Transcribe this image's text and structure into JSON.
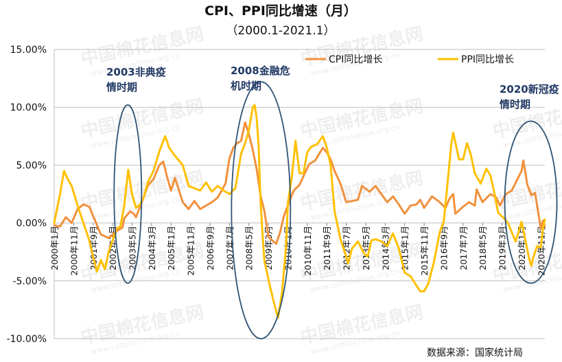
{
  "chart_data": {
    "type": "line",
    "title": "CPI、PPI同比增速（月）",
    "subtitle": "（2000.1-2021.1）",
    "ylim": [
      -10,
      15
    ],
    "y_ticks": [
      "15.00%",
      "10.00%",
      "5.00%",
      "0.00%",
      "-5.00%",
      "-10.00%"
    ],
    "y_tick_values": [
      15,
      10,
      5,
      0,
      -5,
      -10
    ],
    "x_range": [
      2000.0,
      2021.0
    ],
    "x_ticks": [
      "2000年1月",
      "2000年11月",
      "2001年9月",
      "2002年7月",
      "2003年5月",
      "2004年3月",
      "2005年1月",
      "2005年11月",
      "2006年9月",
      "2007年7月",
      "2008年5月",
      "2009年3月",
      "2010年1月",
      "2010年11月",
      "2011年9月",
      "2012年7月",
      "2013年5月",
      "2014年3月",
      "2015年1月",
      "2015年11月",
      "2016年9月",
      "2017年7月",
      "2018年5月",
      "2019年3月",
      "2020年1月",
      "2020年11月"
    ],
    "x_tick_values": [
      2000.0,
      2000.833,
      2001.667,
      2002.5,
      2003.333,
      2004.167,
      2005.0,
      2005.833,
      2006.667,
      2007.5,
      2008.333,
      2009.167,
      2010.0,
      2010.833,
      2011.667,
      2012.5,
      2013.333,
      2014.167,
      2015.0,
      2015.833,
      2016.667,
      2017.5,
      2018.333,
      2019.167,
      2020.0,
      2020.833
    ],
    "grid": "horizontal",
    "legend_position": "top-right",
    "series": [
      {
        "name": "CPI同比增长",
        "color": "#F0913D",
        "points": [
          [
            2000.0,
            -0.2
          ],
          [
            2000.25,
            -0.3
          ],
          [
            2000.5,
            0.5
          ],
          [
            2000.75,
            0.0
          ],
          [
            2001.0,
            1.2
          ],
          [
            2001.25,
            1.6
          ],
          [
            2001.5,
            1.4
          ],
          [
            2001.75,
            0.2
          ],
          [
            2002.0,
            -1.0
          ],
          [
            2002.33,
            -1.3
          ],
          [
            2002.67,
            -0.7
          ],
          [
            2002.92,
            -0.4
          ],
          [
            2003.0,
            0.4
          ],
          [
            2003.25,
            1.0
          ],
          [
            2003.4,
            0.8
          ],
          [
            2003.5,
            0.5
          ],
          [
            2003.75,
            1.8
          ],
          [
            2004.0,
            3.2
          ],
          [
            2004.25,
            3.8
          ],
          [
            2004.5,
            5.0
          ],
          [
            2004.67,
            5.3
          ],
          [
            2004.83,
            4.0
          ],
          [
            2005.0,
            2.8
          ],
          [
            2005.17,
            3.9
          ],
          [
            2005.5,
            1.8
          ],
          [
            2005.75,
            1.2
          ],
          [
            2006.0,
            1.9
          ],
          [
            2006.25,
            1.2
          ],
          [
            2006.5,
            1.5
          ],
          [
            2006.75,
            1.8
          ],
          [
            2007.0,
            2.2
          ],
          [
            2007.33,
            3.4
          ],
          [
            2007.5,
            5.6
          ],
          [
            2007.67,
            6.5
          ],
          [
            2007.83,
            6.9
          ],
          [
            2008.0,
            7.1
          ],
          [
            2008.17,
            8.7
          ],
          [
            2008.33,
            7.7
          ],
          [
            2008.5,
            6.3
          ],
          [
            2008.67,
            4.6
          ],
          [
            2008.83,
            2.4
          ],
          [
            2009.0,
            1.0
          ],
          [
            2009.17,
            -1.2
          ],
          [
            2009.33,
            -1.5
          ],
          [
            2009.5,
            -1.8
          ],
          [
            2009.67,
            -0.8
          ],
          [
            2009.83,
            0.6
          ],
          [
            2010.0,
            1.5
          ],
          [
            2010.25,
            2.8
          ],
          [
            2010.5,
            3.3
          ],
          [
            2010.75,
            4.4
          ],
          [
            2010.92,
            5.1
          ],
          [
            2011.17,
            5.4
          ],
          [
            2011.5,
            6.5
          ],
          [
            2011.67,
            6.1
          ],
          [
            2011.83,
            5.5
          ],
          [
            2012.0,
            4.5
          ],
          [
            2012.25,
            3.4
          ],
          [
            2012.5,
            1.8
          ],
          [
            2012.75,
            1.9
          ],
          [
            2013.0,
            2.0
          ],
          [
            2013.17,
            3.2
          ],
          [
            2013.5,
            2.7
          ],
          [
            2013.75,
            3.2
          ],
          [
            2014.0,
            2.5
          ],
          [
            2014.25,
            1.8
          ],
          [
            2014.5,
            2.3
          ],
          [
            2014.75,
            1.6
          ],
          [
            2015.0,
            0.8
          ],
          [
            2015.25,
            1.5
          ],
          [
            2015.5,
            1.6
          ],
          [
            2015.67,
            2.0
          ],
          [
            2015.83,
            1.3
          ],
          [
            2016.0,
            1.8
          ],
          [
            2016.17,
            2.3
          ],
          [
            2016.5,
            1.8
          ],
          [
            2016.75,
            1.3
          ],
          [
            2016.92,
            2.1
          ],
          [
            2017.08,
            2.5
          ],
          [
            2017.17,
            0.8
          ],
          [
            2017.5,
            1.4
          ],
          [
            2017.75,
            1.8
          ],
          [
            2018.0,
            1.5
          ],
          [
            2018.08,
            2.9
          ],
          [
            2018.33,
            1.8
          ],
          [
            2018.67,
            2.5
          ],
          [
            2018.92,
            2.2
          ],
          [
            2019.08,
            1.5
          ],
          [
            2019.33,
            2.5
          ],
          [
            2019.58,
            2.8
          ],
          [
            2019.83,
            3.8
          ],
          [
            2020.0,
            4.5
          ],
          [
            2020.08,
            5.4
          ],
          [
            2020.25,
            3.3
          ],
          [
            2020.42,
            2.4
          ],
          [
            2020.58,
            2.6
          ],
          [
            2020.75,
            0.5
          ],
          [
            2020.83,
            -0.5
          ],
          [
            2020.92,
            0.2
          ],
          [
            2021.0,
            -0.3
          ]
        ]
      },
      {
        "name": "PPI同比增长",
        "color": "#FFC000",
        "points": [
          [
            2000.0,
            0.0
          ],
          [
            2000.25,
            2.5
          ],
          [
            2000.42,
            4.5
          ],
          [
            2000.58,
            3.8
          ],
          [
            2000.75,
            3.2
          ],
          [
            2001.0,
            1.5
          ],
          [
            2001.25,
            0.0
          ],
          [
            2001.5,
            -1.5
          ],
          [
            2001.67,
            -3.0
          ],
          [
            2001.83,
            -4.2
          ],
          [
            2002.0,
            -3.2
          ],
          [
            2002.17,
            -4.0
          ],
          [
            2002.33,
            -2.5
          ],
          [
            2002.67,
            -0.5
          ],
          [
            2002.83,
            -0.3
          ],
          [
            2003.0,
            1.5
          ],
          [
            2003.08,
            3.0
          ],
          [
            2003.17,
            4.6
          ],
          [
            2003.33,
            2.5
          ],
          [
            2003.5,
            1.3
          ],
          [
            2003.67,
            1.6
          ],
          [
            2003.83,
            2.2
          ],
          [
            2004.0,
            3.5
          ],
          [
            2004.25,
            4.5
          ],
          [
            2004.5,
            6.2
          ],
          [
            2004.75,
            7.5
          ],
          [
            2004.92,
            6.5
          ],
          [
            2005.17,
            5.8
          ],
          [
            2005.5,
            5.0
          ],
          [
            2005.75,
            3.2
          ],
          [
            2006.0,
            3.0
          ],
          [
            2006.25,
            2.8
          ],
          [
            2006.5,
            3.5
          ],
          [
            2006.75,
            2.7
          ],
          [
            2007.0,
            3.2
          ],
          [
            2007.25,
            2.8
          ],
          [
            2007.5,
            2.5
          ],
          [
            2007.75,
            3.0
          ],
          [
            2008.0,
            6.0
          ],
          [
            2008.17,
            6.9
          ],
          [
            2008.33,
            8.0
          ],
          [
            2008.5,
            10.0
          ],
          [
            2008.58,
            10.2
          ],
          [
            2008.67,
            9.0
          ],
          [
            2008.75,
            6.6
          ],
          [
            2008.83,
            2.0
          ],
          [
            2008.92,
            -1.1
          ],
          [
            2009.0,
            -3.3
          ],
          [
            2009.25,
            -5.6
          ],
          [
            2009.42,
            -7.0
          ],
          [
            2009.58,
            -8.2
          ],
          [
            2009.75,
            -6.0
          ],
          [
            2009.92,
            -2.1
          ],
          [
            2010.0,
            1.7
          ],
          [
            2010.17,
            4.0
          ],
          [
            2010.33,
            7.1
          ],
          [
            2010.5,
            4.3
          ],
          [
            2010.67,
            4.3
          ],
          [
            2010.83,
            6.1
          ],
          [
            2011.0,
            6.6
          ],
          [
            2011.25,
            6.8
          ],
          [
            2011.5,
            7.5
          ],
          [
            2011.67,
            6.5
          ],
          [
            2011.83,
            5.0
          ],
          [
            2012.0,
            1.0
          ],
          [
            2012.25,
            -1.4
          ],
          [
            2012.5,
            -2.9
          ],
          [
            2012.58,
            -3.5
          ],
          [
            2012.75,
            -2.2
          ],
          [
            2013.0,
            -1.6
          ],
          [
            2013.25,
            -2.6
          ],
          [
            2013.42,
            -2.9
          ],
          [
            2013.58,
            -1.5
          ],
          [
            2013.75,
            -1.4
          ],
          [
            2014.0,
            -1.6
          ],
          [
            2014.25,
            -2.0
          ],
          [
            2014.5,
            -0.9
          ],
          [
            2014.75,
            -2.2
          ],
          [
            2015.0,
            -4.3
          ],
          [
            2015.25,
            -4.6
          ],
          [
            2015.5,
            -5.4
          ],
          [
            2015.67,
            -5.9
          ],
          [
            2015.83,
            -5.9
          ],
          [
            2016.0,
            -5.3
          ],
          [
            2016.25,
            -3.4
          ],
          [
            2016.5,
            -0.8
          ],
          [
            2016.67,
            0.1
          ],
          [
            2016.83,
            3.3
          ],
          [
            2017.0,
            6.9
          ],
          [
            2017.08,
            7.8
          ],
          [
            2017.33,
            5.5
          ],
          [
            2017.5,
            5.5
          ],
          [
            2017.67,
            6.9
          ],
          [
            2017.83,
            5.9
          ],
          [
            2018.0,
            4.3
          ],
          [
            2018.25,
            3.4
          ],
          [
            2018.5,
            4.7
          ],
          [
            2018.67,
            4.1
          ],
          [
            2018.83,
            2.7
          ],
          [
            2019.0,
            0.9
          ],
          [
            2019.25,
            0.4
          ],
          [
            2019.42,
            0.0
          ],
          [
            2019.58,
            -0.8
          ],
          [
            2019.75,
            -1.6
          ],
          [
            2019.92,
            -0.5
          ],
          [
            2020.0,
            0.1
          ],
          [
            2020.17,
            -1.5
          ],
          [
            2020.33,
            -3.1
          ],
          [
            2020.42,
            -3.7
          ],
          [
            2020.5,
            -3.0
          ],
          [
            2020.67,
            -2.0
          ],
          [
            2020.83,
            -2.1
          ],
          [
            2020.92,
            -0.4
          ],
          [
            2021.0,
            0.3
          ]
        ]
      }
    ],
    "annotations": [
      {
        "lines": [
          "2003非典疫",
          "情时期"
        ],
        "ellipse": {
          "x_center": 2003.15,
          "y_min": -5.2,
          "y_max": 10.2
        }
      },
      {
        "lines": [
          "2008金融危",
          "机时期"
        ],
        "ellipse": {
          "x_center": 2008.85,
          "y_min": -10.0,
          "y_max": 12.2
        }
      },
      {
        "lines": [
          "2020新冠疫",
          "情时期"
        ],
        "ellipse": {
          "x_center": 2020.4,
          "y_min": -5.2,
          "y_max": 8.8
        }
      }
    ],
    "source": "数据来源：国家统计局",
    "watermark_text": "中国棉花信息网",
    "watermark_url": "www.cottonchina.org.cn"
  }
}
